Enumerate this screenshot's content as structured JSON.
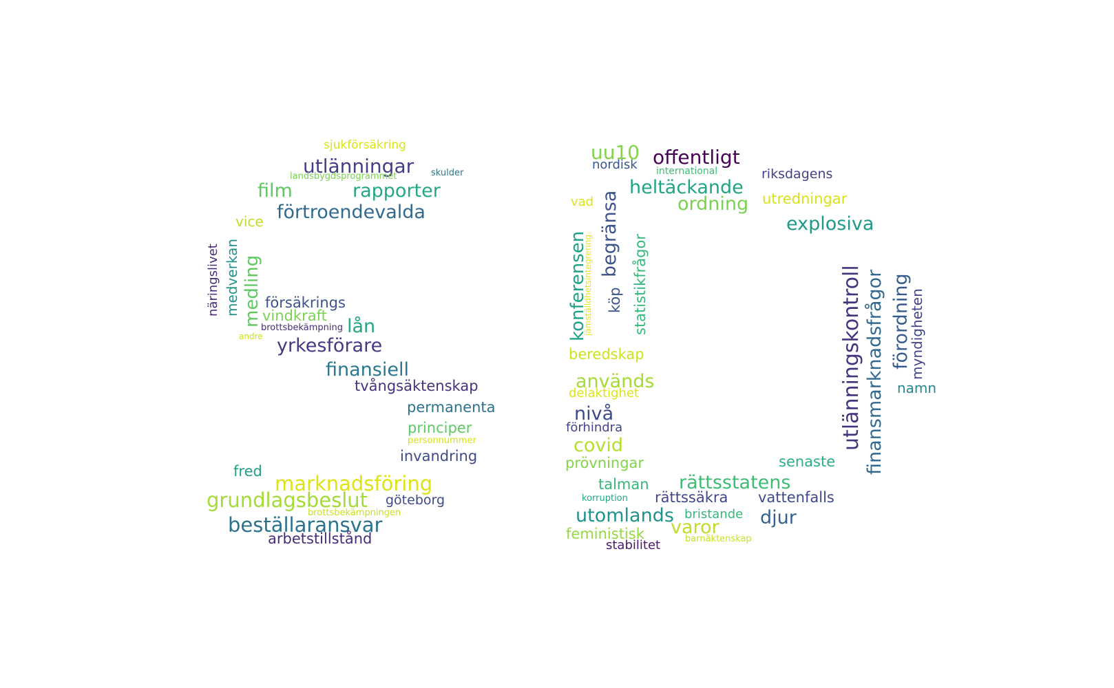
{
  "words": [
    {
      "text": "sjukförsäkring",
      "color": "#dde318"
    },
    {
      "text": "utlänningar",
      "color": "#433e85"
    },
    {
      "text": "skulder",
      "color": "#2a788e"
    },
    {
      "text": "landsbygdsprogrammet",
      "color": "#7ad151"
    },
    {
      "text": "film",
      "color": "#5ec962"
    },
    {
      "text": "rapporter",
      "color": "#22a884"
    },
    {
      "text": "förtroendevalda",
      "color": "#31688e"
    },
    {
      "text": "vice",
      "color": "#bddf26"
    },
    {
      "text": "näringslivet",
      "color": "#482878"
    },
    {
      "text": "medverkan",
      "color": "#21918c"
    },
    {
      "text": "medling",
      "color": "#5ec962"
    },
    {
      "text": "försäkrings",
      "color": "#3b528b"
    },
    {
      "text": "vindkraft",
      "color": "#7ad151"
    },
    {
      "text": "lån",
      "color": "#22a884"
    },
    {
      "text": "brottsbekämpning",
      "color": "#472d7b"
    },
    {
      "text": "andre",
      "color": "#d0e11c"
    },
    {
      "text": "yrkesförare",
      "color": "#443983"
    },
    {
      "text": "finansiell",
      "color": "#2a788e"
    },
    {
      "text": "tvångsäktenskap",
      "color": "#46327e"
    },
    {
      "text": "permanenta",
      "color": "#2c728e"
    },
    {
      "text": "principer",
      "color": "#5ec962"
    },
    {
      "text": "personnummer",
      "color": "#d5e21a"
    },
    {
      "text": "invandring",
      "color": "#3e4989"
    },
    {
      "text": "fred",
      "color": "#1fa187"
    },
    {
      "text": "marknadsföring",
      "color": "#dde318"
    },
    {
      "text": "grundlagsbeslut",
      "color": "#a5db36"
    },
    {
      "text": "göteborg",
      "color": "#3e4a89"
    },
    {
      "text": "brottsbekämpningen",
      "color": "#cae11f"
    },
    {
      "text": "beställaransvar",
      "color": "#2c728e"
    },
    {
      "text": "arbetstillstånd",
      "color": "#472c7a"
    },
    {
      "text": "uu10",
      "color": "#84d44b"
    },
    {
      "text": "offentligt",
      "color": "#440154"
    },
    {
      "text": "nordisk",
      "color": "#39568c"
    },
    {
      "text": "international",
      "color": "#3fbc73"
    },
    {
      "text": "riksdagens",
      "color": "#414487"
    },
    {
      "text": "heltäckande",
      "color": "#20a486"
    },
    {
      "text": "ordning",
      "color": "#7ad151"
    },
    {
      "text": "utredningar",
      "color": "#d8e219"
    },
    {
      "text": "vad",
      "color": "#dde318"
    },
    {
      "text": "explosiva",
      "color": "#1f9a8a"
    },
    {
      "text": "begränsa",
      "color": "#3b528b"
    },
    {
      "text": "statistikfrågor",
      "color": "#35b779"
    },
    {
      "text": "konferensen",
      "color": "#1fa187"
    },
    {
      "text": "jämställdhetsintegrering",
      "color": "#e5e419"
    },
    {
      "text": "köp",
      "color": "#39558c"
    },
    {
      "text": "utlänningskontroll",
      "color": "#46337e"
    },
    {
      "text": "finansmarknadsfrågor",
      "color": "#31688e"
    },
    {
      "text": "förordning",
      "color": "#365c8d"
    },
    {
      "text": "myndigheten",
      "color": "#414487"
    },
    {
      "text": "namn",
      "color": "#23898e"
    },
    {
      "text": "beredskap",
      "color": "#cde11d"
    },
    {
      "text": "används",
      "color": "#a5db36"
    },
    {
      "text": "delaktighet",
      "color": "#dde318"
    },
    {
      "text": "nivå",
      "color": "#3e4989"
    },
    {
      "text": "förhindra",
      "color": "#404588"
    },
    {
      "text": "covid",
      "color": "#b5de2b"
    },
    {
      "text": "prövningar",
      "color": "#84d44b"
    },
    {
      "text": "senaste",
      "color": "#2ab07f"
    },
    {
      "text": "talman",
      "color": "#35b779"
    },
    {
      "text": "rättsstatens",
      "color": "#3fbc73"
    },
    {
      "text": "korruption",
      "color": "#22a884"
    },
    {
      "text": "rättssäkra",
      "color": "#3f4788"
    },
    {
      "text": "vattenfalls",
      "color": "#3e4a89"
    },
    {
      "text": "utomlands",
      "color": "#20928c"
    },
    {
      "text": "bristande",
      "color": "#35b779"
    },
    {
      "text": "djur",
      "color": "#33638d"
    },
    {
      "text": "feministisk",
      "color": "#95d840"
    },
    {
      "text": "varor",
      "color": "#bddf26"
    },
    {
      "text": "barnäktenskap",
      "color": "#cae11f"
    },
    {
      "text": "stabilitet",
      "color": "#48186a"
    }
  ]
}
